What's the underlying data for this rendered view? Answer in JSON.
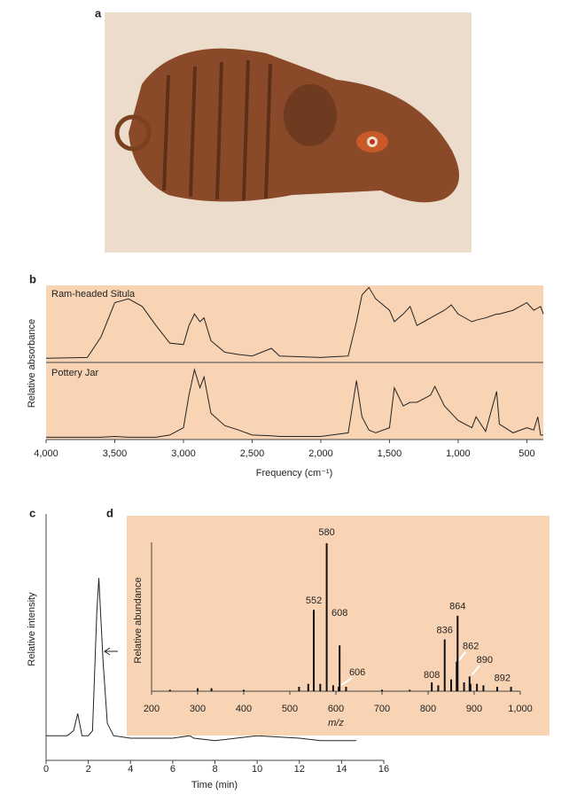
{
  "figure": {
    "panel_labels": [
      "a",
      "b",
      "c",
      "d"
    ]
  },
  "chart_data": [
    {
      "type": "line",
      "xlabel": "Frequency (cm⁻¹)",
      "ylabel": "Relative absorbance",
      "xlim": [
        4000,
        380
      ],
      "ylim": [
        0,
        1
      ],
      "xticks": [
        {
          "value": 4000,
          "label": "4,000"
        },
        {
          "value": 3500,
          "label": "3,500"
        },
        {
          "value": 3000,
          "label": "3,000"
        },
        {
          "value": 2500,
          "label": "2,500"
        },
        {
          "value": 2000,
          "label": "2,000"
        },
        {
          "value": 1500,
          "label": "1,500"
        },
        {
          "value": 1000,
          "label": "1,000"
        },
        500
      ],
      "x": [
        4000,
        3700,
        3600,
        3500,
        3400,
        3300,
        3200,
        3100,
        3000,
        2960,
        2920,
        2880,
        2850,
        2800,
        2700,
        2600,
        2500,
        2360,
        2300,
        2000,
        1800,
        1740,
        1700,
        1650,
        1600,
        1500,
        1465,
        1400,
        1350,
        1300,
        1250,
        1200,
        1170,
        1100,
        1050,
        1000,
        900,
        870,
        800,
        720,
        700,
        600,
        500,
        450,
        420,
        400,
        380
      ],
      "series": [
        {
          "name": "Ram-headed Situla",
          "color": "#222222",
          "values": [
            0.02,
            0.03,
            0.3,
            0.75,
            0.8,
            0.7,
            0.45,
            0.22,
            0.2,
            0.45,
            0.6,
            0.5,
            0.55,
            0.25,
            0.1,
            0.07,
            0.05,
            0.15,
            0.05,
            0.03,
            0.05,
            0.5,
            0.85,
            0.95,
            0.8,
            0.65,
            0.5,
            0.6,
            0.7,
            0.45,
            0.5,
            0.55,
            0.58,
            0.65,
            0.72,
            0.6,
            0.5,
            0.52,
            0.55,
            0.6,
            0.6,
            0.65,
            0.75,
            0.65,
            0.68,
            0.7,
            0.6
          ]
        },
        {
          "name": "Pottery Jar",
          "color": "#222222",
          "values": [
            0.02,
            0.02,
            0.02,
            0.03,
            0.02,
            0.02,
            0.02,
            0.05,
            0.15,
            0.6,
            0.95,
            0.7,
            0.85,
            0.35,
            0.18,
            0.12,
            0.05,
            0.04,
            0.03,
            0.03,
            0.08,
            0.8,
            0.3,
            0.12,
            0.08,
            0.15,
            0.7,
            0.45,
            0.5,
            0.5,
            0.55,
            0.6,
            0.72,
            0.45,
            0.35,
            0.25,
            0.15,
            0.3,
            0.1,
            0.65,
            0.2,
            0.08,
            0.15,
            0.12,
            0.3,
            0.05,
            0.05
          ]
        }
      ]
    },
    {
      "type": "line",
      "xlabel": "Time (min)",
      "ylabel": "Relative intensity",
      "xlim": [
        0,
        16
      ],
      "ylim": [
        0,
        1
      ],
      "xticks": [
        0,
        2,
        4,
        6,
        8,
        10,
        12,
        14,
        16
      ],
      "x": [
        0,
        1,
        1.3,
        1.5,
        1.7,
        2,
        2.2,
        2.4,
        2.5,
        2.7,
        2.9,
        3.2,
        4,
        6,
        6.8,
        7,
        8,
        9,
        10,
        12,
        13,
        14.7
      ],
      "series": [
        {
          "color": "#222222",
          "values": [
            0.1,
            0.1,
            0.12,
            0.19,
            0.1,
            0.1,
            0.12,
            0.6,
            0.74,
            0.4,
            0.15,
            0.1,
            0.09,
            0.09,
            0.1,
            0.09,
            0.08,
            0.09,
            0.1,
            0.09,
            0.08,
            0.08
          ]
        }
      ]
    },
    {
      "type": "stem",
      "xlabel": "m/z",
      "ylabel": "Relative abundance",
      "xlim": [
        200,
        1000
      ],
      "ylim": [
        0,
        1
      ],
      "xticks": [
        200,
        300,
        400,
        500,
        600,
        700,
        800,
        900,
        {
          "value": 1000,
          "label": "1,000"
        }
      ],
      "x": [
        240,
        300,
        330,
        400,
        520,
        540,
        552,
        566,
        580,
        594,
        606,
        608,
        622,
        700,
        760,
        808,
        822,
        836,
        850,
        862,
        864,
        878,
        890,
        892,
        906,
        920,
        950,
        980
      ],
      "values": [
        0.01,
        0.02,
        0.02,
        0.01,
        0.03,
        0.05,
        0.55,
        0.05,
        1.0,
        0.04,
        0.03,
        0.31,
        0.03,
        0.01,
        0.01,
        0.06,
        0.04,
        0.35,
        0.08,
        0.2,
        0.51,
        0.06,
        0.1,
        0.05,
        0.05,
        0.04,
        0.03,
        0.03
      ],
      "color": "#111111",
      "peak_labels": [
        552,
        580,
        608,
        606,
        808,
        836,
        864,
        862,
        890,
        892
      ]
    }
  ]
}
